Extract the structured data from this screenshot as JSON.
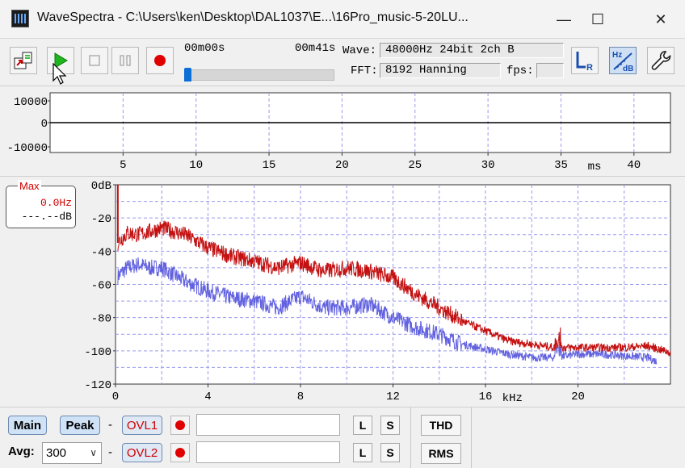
{
  "window": {
    "title": "WaveSpectra - C:\\Users\\ken\\Desktop\\DAL1037\\E...\\16Pro_music-5-20LU...",
    "minimize_glyph": "—",
    "maximize_glyph": "☐",
    "close_glyph": "✕"
  },
  "toolbar": {
    "time_start": "00m00s",
    "time_end": "00m41s",
    "seek_progress": 0.0,
    "wave_label": "Wave:",
    "wave_value": "48000Hz 24bit 2ch B",
    "fft_label": "FFT:",
    "fft_value": "8192 Hanning",
    "fps_label": "fps:",
    "fps_value": ""
  },
  "waveform": {
    "y_ticks": [
      "10000",
      "0",
      "-10000"
    ],
    "x_ticks": [
      "5",
      "10",
      "15",
      "20",
      "25",
      "30",
      "35",
      "40"
    ],
    "x_unit": "ms",
    "x_range": [
      0,
      42.5
    ]
  },
  "spectrum": {
    "y_ticks": [
      "0dB",
      "-20",
      "-40",
      "-60",
      "-80",
      "-100",
      "-120"
    ],
    "x_ticks": [
      "0",
      "4",
      "8",
      "12",
      "16",
      "20"
    ],
    "x_unit": "kHz",
    "max_title": "Max",
    "max_hz": "0.0Hz",
    "max_db": "---.--dB",
    "colors": {
      "ch1": "#c41010",
      "ch2": "#6262e0"
    }
  },
  "chart_data": {
    "type": "line",
    "title": "",
    "xlabel": "kHz",
    "ylabel": "",
    "xlim": [
      0,
      24
    ],
    "ylim": [
      -120,
      0
    ],
    "grid": true,
    "legend": "none",
    "x": [
      0.1,
      0.5,
      1,
      1.5,
      2,
      2.5,
      3,
      4,
      5,
      6,
      7,
      8,
      9,
      10,
      11,
      12,
      13,
      14,
      15,
      16,
      17,
      18,
      19,
      20,
      21,
      22,
      23,
      24
    ],
    "series": [
      {
        "values": [
          -35,
          -29,
          -30,
          -28,
          -26,
          -28,
          -30,
          -38,
          -43,
          -46,
          -50,
          -47,
          -52,
          -50,
          -52,
          -56,
          -66,
          -74,
          -82,
          -88,
          -94,
          -96,
          -98,
          -98,
          -98,
          -98,
          -97,
          -101
        ]
      },
      {
        "values": [
          -55,
          -50,
          -48,
          -50,
          -50,
          -54,
          -58,
          -64,
          -68,
          -70,
          -74,
          -67,
          -74,
          -74,
          -72,
          -80,
          -86,
          -90,
          -96,
          -99,
          -102,
          -104,
          -104,
          -102,
          -102,
          -103,
          -104,
          -110
        ]
      }
    ]
  },
  "bottom": {
    "main_label": "Main",
    "peak_label": "Peak",
    "avg_label": "Avg:",
    "avg_value": "300",
    "dash": "-",
    "ovl1_label": "OVL1",
    "ovl2_label": "OVL2",
    "l_label": "L",
    "s_label": "S",
    "thd_label": "THD",
    "rms_label": "RMS"
  }
}
